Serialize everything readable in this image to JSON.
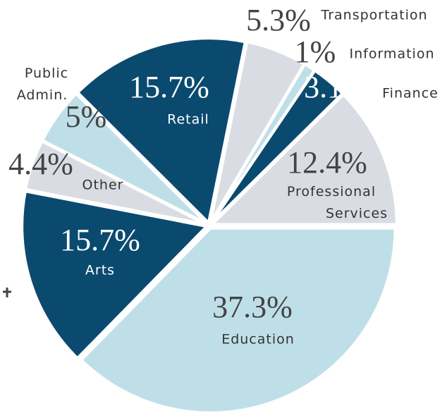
{
  "chart_data": {
    "type": "pie",
    "categories": [
      "Education",
      "Arts",
      "Other",
      "Public Admin.",
      "Retail",
      "Transportation",
      "Information",
      "Finance",
      "Professional Services"
    ],
    "values": [
      37.3,
      15.7,
      4.4,
      5,
      15.7,
      5.3,
      1,
      3.1,
      12.4
    ],
    "value_labels": [
      "37.3%",
      "15.7%",
      "4.4%",
      "5%",
      "15.7%",
      "5.3%",
      "1%",
      "3.1%",
      "12.4%"
    ],
    "colors": [
      "#bfdfe8",
      "#0b4a6f",
      "#d9dde3",
      "#bfdfe8",
      "#0b4a6f",
      "#d9dde3",
      "#bfdfe8",
      "#0b4a6f",
      "#d9dde3"
    ]
  }
}
